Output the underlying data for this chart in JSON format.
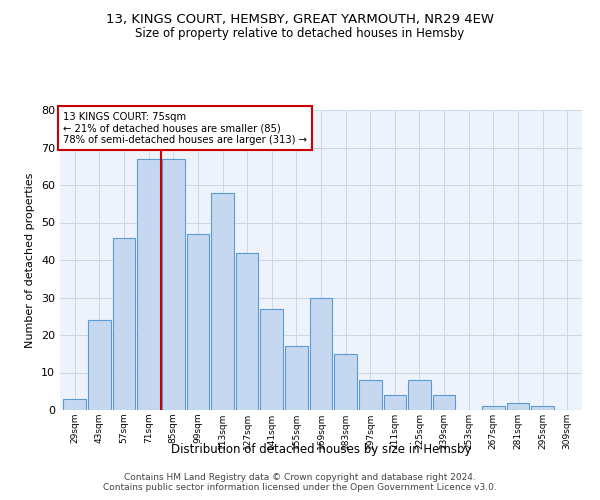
{
  "title1": "13, KINGS COURT, HEMSBY, GREAT YARMOUTH, NR29 4EW",
  "title2": "Size of property relative to detached houses in Hemsby",
  "xlabel": "Distribution of detached houses by size in Hemsby",
  "ylabel": "Number of detached properties",
  "categories": [
    "29sqm",
    "43sqm",
    "57sqm",
    "71sqm",
    "85sqm",
    "99sqm",
    "113sqm",
    "127sqm",
    "141sqm",
    "155sqm",
    "169sqm",
    "183sqm",
    "197sqm",
    "211sqm",
    "225sqm",
    "239sqm",
    "253sqm",
    "267sqm",
    "281sqm",
    "295sqm",
    "309sqm"
  ],
  "values": [
    3,
    24,
    46,
    67,
    67,
    47,
    58,
    42,
    27,
    17,
    30,
    15,
    8,
    4,
    8,
    4,
    0,
    1,
    2,
    1,
    0
  ],
  "bar_color": "#c5d8f0",
  "bar_edge_color": "#5b9bd5",
  "annotation_box_text": "13 KINGS COURT: 75sqm\n← 21% of detached houses are smaller (85)\n78% of semi-detached houses are larger (313) →",
  "annotation_box_color": "#ffffff",
  "annotation_box_edge_color": "#cc0000",
  "red_line_color": "#cc0000",
  "ylim": [
    0,
    80
  ],
  "yticks": [
    0,
    10,
    20,
    30,
    40,
    50,
    60,
    70,
    80
  ],
  "grid_color": "#c8d8e8",
  "bg_color": "#eef2fa",
  "footer": "Contains HM Land Registry data © Crown copyright and database right 2024.\nContains public sector information licensed under the Open Government Licence v3.0."
}
